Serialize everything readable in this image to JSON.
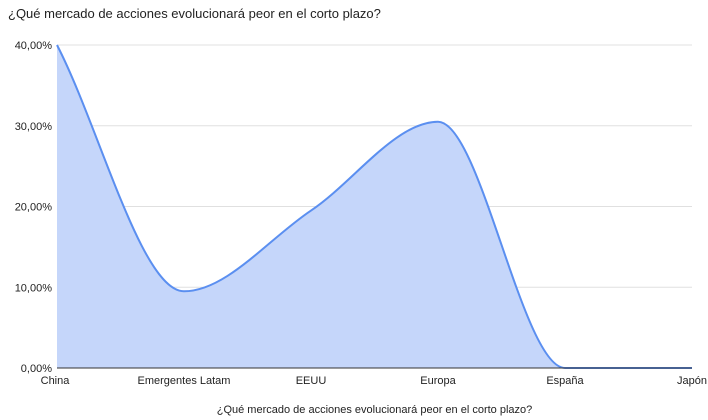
{
  "chart_data": {
    "type": "area",
    "title": "¿Qué mercado de acciones evolucionará peor en el corto plazo?",
    "xlabel": "¿Qué mercado de acciones evolucionará peor en el corto plazo?",
    "ylabel": "",
    "categories": [
      "China",
      "Emergentes Latam",
      "EEUU",
      "Europa",
      "España",
      "Japón"
    ],
    "values": [
      40,
      9.5,
      19.5,
      30.5,
      0,
      0
    ],
    "ylim": [
      0,
      40
    ],
    "yticks": [
      0,
      10,
      20,
      30,
      40
    ],
    "ytick_labels": [
      "0,00%",
      "10,00%",
      "20,00%",
      "30,00%",
      "40,00%"
    ],
    "grid": true,
    "smooth": true,
    "legend": "none",
    "colors": {
      "line": "#5b8ff0",
      "fill": "#c5d6fa",
      "grid": "#e0e0e0",
      "axis": "#333333"
    }
  }
}
